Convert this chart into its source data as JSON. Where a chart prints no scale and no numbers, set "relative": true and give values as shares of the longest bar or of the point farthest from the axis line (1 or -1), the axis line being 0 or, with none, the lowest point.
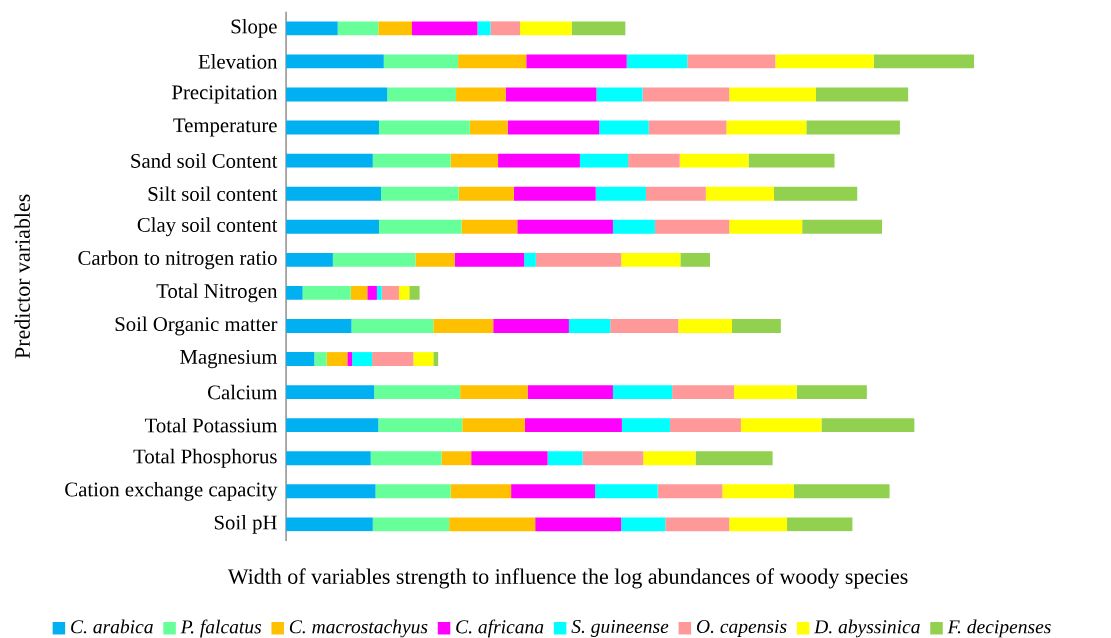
{
  "chart_data": {
    "type": "bar",
    "orientation": "horizontal",
    "stacked": true,
    "relative": true,
    "legend": "bottom",
    "xlabel": "Width of variables strength to influence the log abundances of woody species",
    "ylabel": "Predictor variables",
    "categories": [
      "Slope",
      "Elevation",
      "Precipitation",
      "Temperature",
      "Sand soil Content",
      "Silt soil content",
      "Clay soil content",
      "Carbon to nitrogen ratio",
      "Total Nitrogen",
      "Soil Organic matter",
      "Magnesium",
      "Calcium",
      "Total Potassium",
      "Total Phosphorus",
      "Cation exchange capacity",
      "Soil pH"
    ],
    "series": [
      {
        "name": "C. arabica",
        "color": "#00b0f0",
        "values": [
          0.075,
          0.142,
          0.147,
          0.135,
          0.126,
          0.138,
          0.135,
          0.068,
          0.024,
          0.095,
          0.041,
          0.128,
          0.134,
          0.123,
          0.13,
          0.126
        ]
      },
      {
        "name": "P. falcatus",
        "color": "#66ff99",
        "values": [
          0.059,
          0.108,
          0.1,
          0.132,
          0.113,
          0.113,
          0.12,
          0.12,
          0.07,
          0.119,
          0.018,
          0.125,
          0.122,
          0.103,
          0.109,
          0.111
        ]
      },
      {
        "name": "C. macrostachyus",
        "color": "#ffc000",
        "values": [
          0.049,
          0.099,
          0.072,
          0.055,
          0.069,
          0.08,
          0.081,
          0.057,
          0.024,
          0.087,
          0.03,
          0.098,
          0.091,
          0.043,
          0.088,
          0.125
        ]
      },
      {
        "name": "C. africana",
        "color": "#ff00ff",
        "values": [
          0.095,
          0.146,
          0.132,
          0.133,
          0.119,
          0.119,
          0.139,
          0.101,
          0.014,
          0.11,
          0.007,
          0.124,
          0.141,
          0.111,
          0.122,
          0.125
        ]
      },
      {
        "name": "S. guineense",
        "color": "#00ffff",
        "values": [
          0.019,
          0.088,
          0.067,
          0.072,
          0.07,
          0.073,
          0.061,
          0.017,
          0.007,
          0.06,
          0.029,
          0.086,
          0.07,
          0.051,
          0.091,
          0.064
        ]
      },
      {
        "name": "O. capensis",
        "color": "#ff9999",
        "values": [
          0.043,
          0.128,
          0.126,
          0.113,
          0.075,
          0.087,
          0.108,
          0.124,
          0.025,
          0.099,
          0.06,
          0.09,
          0.103,
          0.088,
          0.094,
          0.093
        ]
      },
      {
        "name": "D. abyssinica",
        "color": "#ffff00",
        "values": [
          0.075,
          0.143,
          0.126,
          0.116,
          0.1,
          0.099,
          0.106,
          0.086,
          0.015,
          0.078,
          0.029,
          0.091,
          0.117,
          0.076,
          0.104,
          0.084
        ]
      },
      {
        "name": "F. decipenses",
        "color": "#92d050",
        "values": [
          0.078,
          0.146,
          0.134,
          0.136,
          0.125,
          0.121,
          0.116,
          0.043,
          0.015,
          0.071,
          0.007,
          0.102,
          0.135,
          0.112,
          0.139,
          0.095
        ]
      }
    ]
  }
}
